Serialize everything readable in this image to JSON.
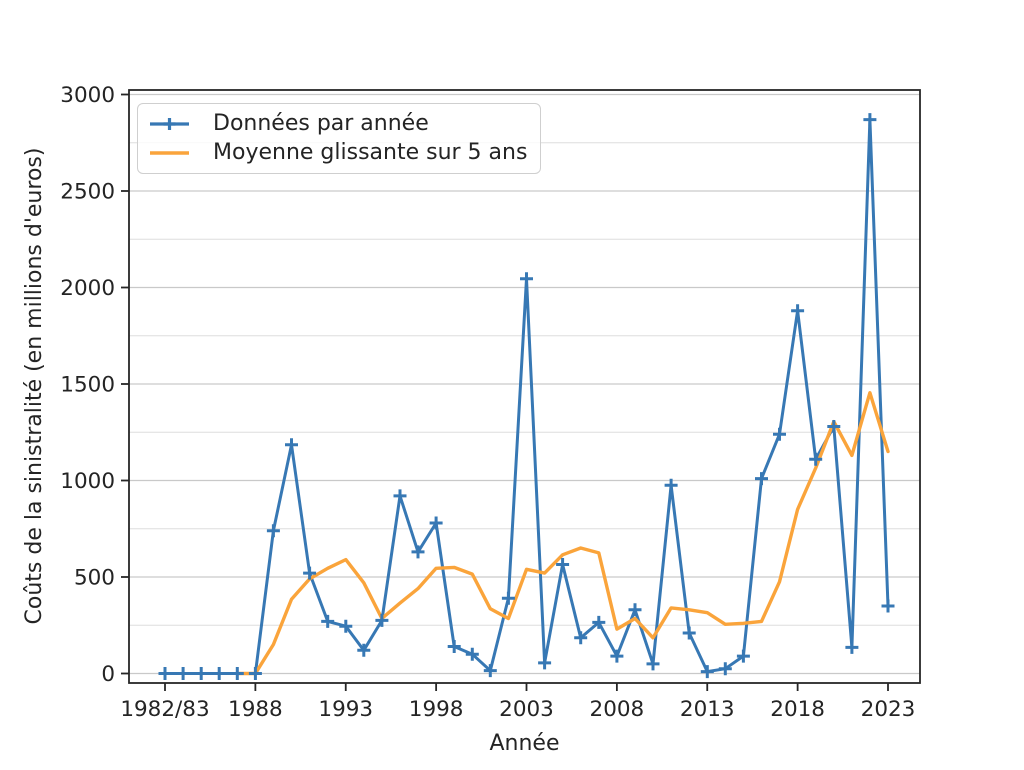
{
  "page": {
    "background": "#ffffff"
  },
  "chart_data": {
    "type": "line",
    "title": "",
    "xlabel": "Année",
    "ylabel": "Coûts de la sinistralité (en millions d'euros)",
    "x_axis": {
      "n_points": 41,
      "first_point_label": "1982/83",
      "tick_positions": [
        0,
        5,
        10,
        15,
        20,
        25,
        30,
        35,
        40
      ],
      "tick_labels": [
        "1982/83",
        "1988",
        "1993",
        "1998",
        "2003",
        "2008",
        "2013",
        "2018",
        "2023"
      ]
    },
    "y_axis": {
      "range": [
        0,
        3000
      ],
      "tick_values": [
        0,
        500,
        1000,
        1500,
        2000,
        2500,
        3000
      ],
      "tick_labels": [
        "0",
        "500",
        "1000",
        "1500",
        "2000",
        "2500",
        "3000"
      ],
      "minor_grid_step": 250
    },
    "grid": {
      "horizontal": true,
      "vertical": false
    },
    "legend": {
      "position": "upper-left"
    },
    "series": [
      {
        "name": "Données par année",
        "color": "#3778b4",
        "marker": "plus",
        "line_width": 3,
        "start_index": 0,
        "values": [
          0,
          0,
          0,
          0,
          0,
          0,
          740,
          1185,
          520,
          270,
          245,
          120,
          275,
          920,
          630,
          780,
          140,
          100,
          15,
          390,
          2045,
          55,
          565,
          185,
          265,
          90,
          330,
          50,
          975,
          210,
          10,
          25,
          90,
          1010,
          1240,
          1880,
          1110,
          1280,
          135,
          2870,
          350
        ]
      },
      {
        "name": "Moyenne glissante sur 5 ans",
        "color": "#faa43b",
        "marker": "none",
        "line_width": 3.4,
        "start_index": 4,
        "values": [
          0,
          0,
          150,
          385,
          490,
          545,
          590,
          470,
          285,
          365,
          440,
          545,
          550,
          515,
          335,
          285,
          540,
          520,
          615,
          650,
          625,
          230,
          285,
          185,
          340,
          330,
          315,
          255,
          260,
          270,
          475,
          850,
          1065,
          1305,
          1130,
          1455,
          1150
        ]
      }
    ],
    "styles": {
      "spine_color": "#262626",
      "text_color": "#242424",
      "grid_major_color": "#c9c9c9",
      "grid_minor_color": "#dddddd"
    }
  }
}
